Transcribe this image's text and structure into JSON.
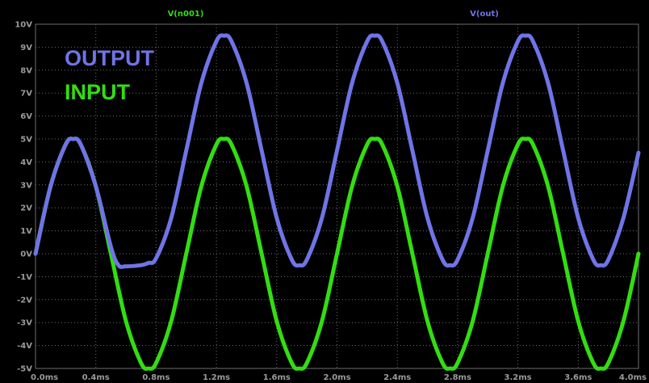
{
  "chart_data": {
    "type": "line",
    "x_unit": "ms",
    "y_unit": "V",
    "xlim": [
      0.0,
      4.0
    ],
    "ylim": [
      -5,
      10
    ],
    "x_ticks": [
      "0.0ms",
      "0.4ms",
      "0.8ms",
      "1.2ms",
      "1.6ms",
      "2.0ms",
      "2.4ms",
      "2.8ms",
      "3.2ms",
      "3.6ms",
      "4.0ms"
    ],
    "y_ticks": [
      "10V",
      "9V",
      "8V",
      "7V",
      "6V",
      "5V",
      "4V",
      "3V",
      "2V",
      "1V",
      "0V",
      "-1V",
      "-2V",
      "-3V",
      "-4V",
      "-5V"
    ],
    "grid": true,
    "background": "#000000",
    "grid_color": "#6e6e6e",
    "tick_color": "#9a9a9a",
    "series": [
      {
        "name": "V(n001)",
        "color": "#33dd11",
        "description_of_shape": "sine",
        "amplitude": 5,
        "frequency_khz": 1,
        "offset": 0,
        "x": [
          0,
          0.1,
          0.2,
          0.25,
          0.3,
          0.4,
          0.5,
          0.6,
          0.7,
          0.75,
          0.8,
          0.9,
          1.0,
          1.1,
          1.2,
          1.25,
          1.3,
          1.4,
          1.5,
          1.6,
          1.7,
          1.75,
          1.8,
          1.9,
          2.0,
          2.1,
          2.2,
          2.25,
          2.3,
          2.4,
          2.5,
          2.6,
          2.7,
          2.75,
          2.8,
          2.9,
          3.0,
          3.1,
          3.2,
          3.25,
          3.3,
          3.4,
          3.5,
          3.6,
          3.7,
          3.75,
          3.8,
          3.9,
          4.0
        ],
        "y": [
          0,
          2.94,
          4.76,
          5,
          4.76,
          2.94,
          0,
          -2.94,
          -4.76,
          -5,
          -4.76,
          -2.94,
          0,
          2.94,
          4.76,
          5,
          4.76,
          2.94,
          0,
          -2.94,
          -4.76,
          -5,
          -4.76,
          -2.94,
          0,
          2.94,
          4.76,
          5,
          4.76,
          2.94,
          0,
          -2.94,
          -4.76,
          -5,
          -4.76,
          -2.94,
          0,
          2.94,
          4.76,
          5,
          4.76,
          2.94,
          0,
          -2.94,
          -4.76,
          -5,
          -4.76,
          -2.94,
          0
        ]
      },
      {
        "name": "V(out)",
        "color": "#6f74e6",
        "x": [
          0,
          0.1,
          0.2,
          0.25,
          0.3,
          0.4,
          0.5,
          0.55,
          0.6,
          0.7,
          0.75,
          0.8,
          0.9,
          1.0,
          1.1,
          1.2,
          1.25,
          1.3,
          1.4,
          1.5,
          1.6,
          1.7,
          1.75,
          1.8,
          1.9,
          2.0,
          2.1,
          2.2,
          2.25,
          2.3,
          2.4,
          2.5,
          2.6,
          2.7,
          2.75,
          2.8,
          2.9,
          3.0,
          3.1,
          3.2,
          3.25,
          3.3,
          3.4,
          3.5,
          3.6,
          3.7,
          3.75,
          3.8,
          3.9,
          4.0
        ],
        "y": [
          0,
          2.94,
          4.76,
          5,
          4.76,
          2.94,
          0.3,
          -0.5,
          -0.55,
          -0.5,
          -0.4,
          -0.2,
          1.55,
          4.5,
          7.44,
          9.26,
          9.5,
          9.26,
          7.44,
          4.5,
          1.56,
          -0.26,
          -0.5,
          -0.26,
          1.56,
          4.5,
          7.44,
          9.26,
          9.5,
          9.26,
          7.44,
          4.5,
          1.56,
          -0.26,
          -0.5,
          -0.26,
          1.56,
          4.5,
          7.44,
          9.26,
          9.5,
          9.26,
          7.44,
          4.5,
          1.56,
          -0.26,
          -0.5,
          -0.26,
          1.56,
          4.4
        ]
      }
    ],
    "annotations": [
      {
        "text": "OUTPUT",
        "color": "#6f74e6"
      },
      {
        "text": "INPUT",
        "color": "#33dd11"
      }
    ]
  }
}
